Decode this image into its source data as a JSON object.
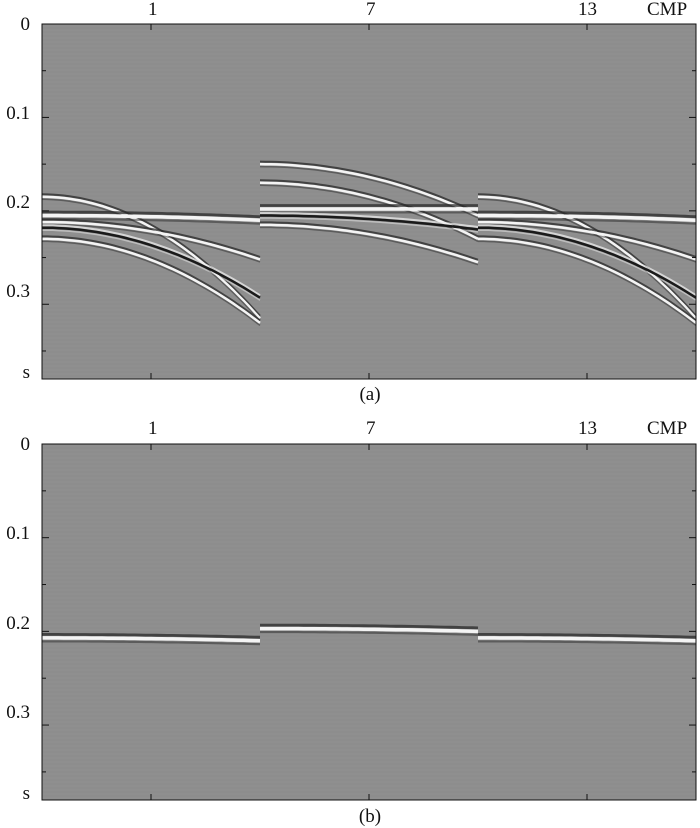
{
  "figures": [
    {
      "id": "a",
      "caption": "(a)",
      "top_labels": {
        "cmp": [
          "1",
          "7",
          "13"
        ],
        "unit": "CMP"
      },
      "y_ticks": [
        "0",
        "0.1",
        "0.2",
        "0.3",
        "s"
      ],
      "panels": [
        {
          "cmp": "1",
          "events": [
            {
              "t0": 0.185,
              "dt": 0.13,
              "polarity": 1
            },
            {
              "t0": 0.205,
              "dt": 0.005,
              "polarity": 2
            },
            {
              "t0": 0.212,
              "dt": 0.04,
              "polarity": 1
            },
            {
              "t0": 0.218,
              "dt": 0.075,
              "polarity": -1
            },
            {
              "t0": 0.23,
              "dt": 0.09,
              "polarity": 1
            }
          ]
        },
        {
          "cmp": "7",
          "events": [
            {
              "t0": 0.15,
              "dt": 0.055,
              "polarity": 1
            },
            {
              "t0": 0.17,
              "dt": 0.06,
              "polarity": 1
            },
            {
              "t0": 0.198,
              "dt": 0.0,
              "polarity": 2
            },
            {
              "t0": 0.205,
              "dt": 0.015,
              "polarity": -1
            },
            {
              "t0": 0.215,
              "dt": 0.04,
              "polarity": 1
            }
          ]
        },
        {
          "cmp": "13",
          "events": [
            {
              "t0": 0.185,
              "dt": 0.13,
              "polarity": 1
            },
            {
              "t0": 0.205,
              "dt": 0.005,
              "polarity": 2
            },
            {
              "t0": 0.212,
              "dt": 0.04,
              "polarity": 1
            },
            {
              "t0": 0.218,
              "dt": 0.075,
              "polarity": -1
            },
            {
              "t0": 0.23,
              "dt": 0.09,
              "polarity": 1
            }
          ]
        }
      ]
    },
    {
      "id": "b",
      "caption": "(b)",
      "top_labels": {
        "cmp": [
          "1",
          "7",
          "13"
        ],
        "unit": "CMP"
      },
      "y_ticks": [
        "0",
        "0.1",
        "0.2",
        "0.3",
        "s"
      ],
      "panels": [
        {
          "cmp": "1",
          "events": [
            {
              "t0": 0.207,
              "dt": 0.003,
              "polarity": 2
            }
          ]
        },
        {
          "cmp": "7",
          "events": [
            {
              "t0": 0.197,
              "dt": 0.003,
              "polarity": 2
            }
          ]
        },
        {
          "cmp": "13",
          "events": [
            {
              "t0": 0.207,
              "dt": 0.003,
              "polarity": 2
            }
          ]
        }
      ]
    }
  ],
  "colors": {
    "background": "#8d8d8d",
    "axis": "#111111"
  }
}
